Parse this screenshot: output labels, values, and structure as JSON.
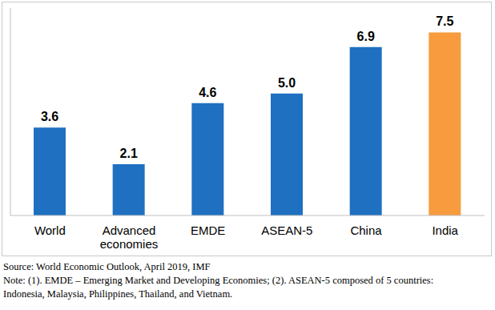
{
  "chart_data": {
    "type": "bar",
    "categories": [
      "World",
      "Advanced economies",
      "EMDE",
      "ASEAN-5",
      "China",
      "India"
    ],
    "values": [
      3.6,
      2.1,
      4.6,
      5.0,
      6.9,
      7.5
    ],
    "colors": [
      "#1f70c1",
      "#1f70c1",
      "#1f70c1",
      "#1f70c1",
      "#1f70c1",
      "#f79b3e"
    ],
    "ylim": [
      0,
      8.5
    ],
    "tick_labels": "x",
    "data_labels": true,
    "grid": false,
    "source": "Source: World Economic Outlook, April 2019, IMF",
    "notes": [
      "Note: (1). EMDE – Emerging Market and Developing Economies; (2). ASEAN-5 composed of 5 countries:",
      "Indonesia, Malaysia, Philippines, Thailand, and Vietnam."
    ]
  }
}
